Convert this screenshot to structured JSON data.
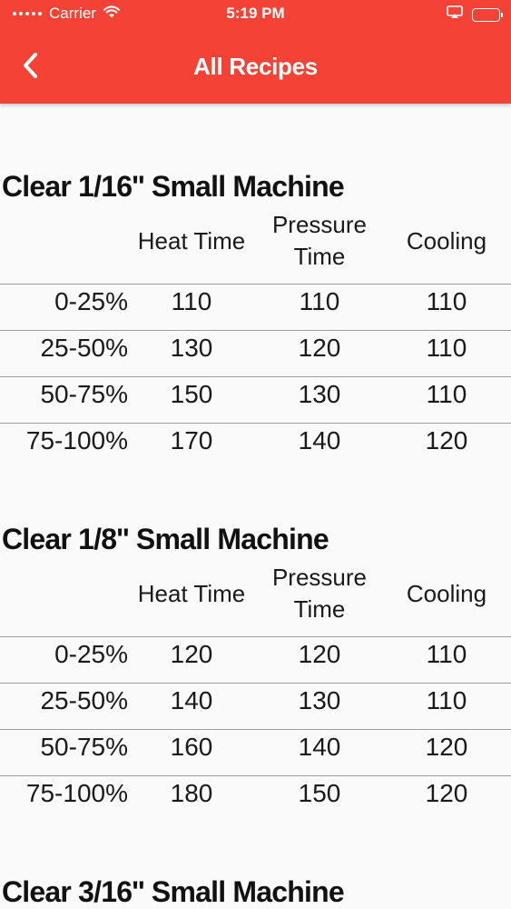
{
  "status_bar": {
    "carrier": "Carrier",
    "time": "5:19 PM"
  },
  "nav": {
    "title": "All Recipes",
    "back_icon": "chevron-left-icon"
  },
  "colors": {
    "header": "#f44336",
    "background": "#fafafa",
    "divider": "#9e9e9e"
  },
  "columns": {
    "heat_time": "Heat Time",
    "pressure_time_line1": "Pressure",
    "pressure_time_line2": "Time",
    "cooling": "Cooling"
  },
  "recipes": [
    {
      "title": "Clear 1/16'' Small Machine",
      "rows": [
        {
          "label": "0-25%",
          "heat": "110",
          "pressure": "110",
          "cooling": "110"
        },
        {
          "label": "25-50%",
          "heat": "130",
          "pressure": "120",
          "cooling": "110"
        },
        {
          "label": "50-75%",
          "heat": "150",
          "pressure": "130",
          "cooling": "110"
        },
        {
          "label": "75-100%",
          "heat": "170",
          "pressure": "140",
          "cooling": "120"
        }
      ]
    },
    {
      "title": "Clear 1/8'' Small Machine",
      "rows": [
        {
          "label": "0-25%",
          "heat": "120",
          "pressure": "120",
          "cooling": "110"
        },
        {
          "label": "25-50%",
          "heat": "140",
          "pressure": "130",
          "cooling": "110"
        },
        {
          "label": "50-75%",
          "heat": "160",
          "pressure": "140",
          "cooling": "120"
        },
        {
          "label": "75-100%",
          "heat": "180",
          "pressure": "150",
          "cooling": "120"
        }
      ]
    },
    {
      "title": "Clear 3/16'' Small Machine",
      "rows": []
    }
  ]
}
